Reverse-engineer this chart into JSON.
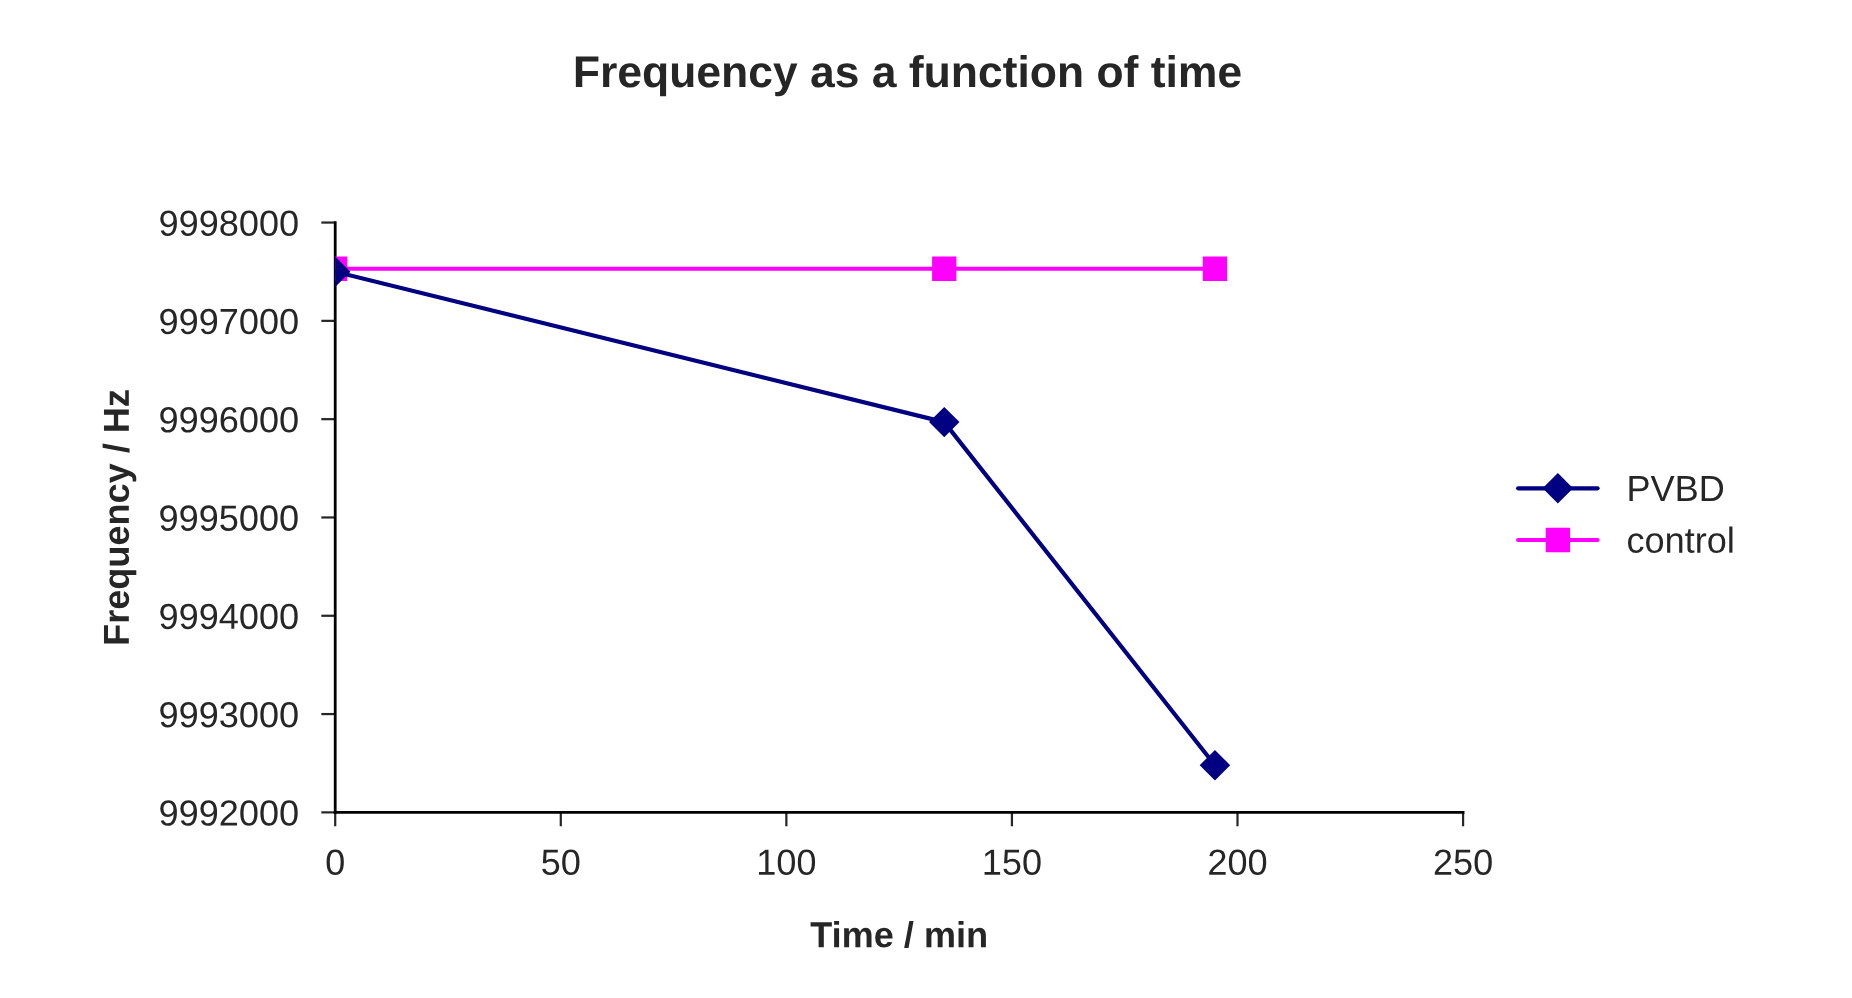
{
  "chart_data": {
    "type": "line",
    "title": "Frequency as a function of time",
    "xlabel": "Time / min",
    "ylabel": "Frequency / Hz",
    "x": [
      0,
      135,
      195
    ],
    "series": [
      {
        "name": "PVBD",
        "color": "#000080",
        "marker": "diamond",
        "values": [
          9997500,
          9995970,
          9992480
        ]
      },
      {
        "name": "control",
        "color": "#ff00ff",
        "marker": "square",
        "values": [
          9997530,
          9997530,
          9997530
        ]
      }
    ],
    "xlim": [
      0,
      250
    ],
    "xticks": [
      0,
      50,
      100,
      150,
      200,
      250
    ],
    "ylim": [
      9992000,
      9998000
    ],
    "yticks": [
      9992000,
      9993000,
      9994000,
      9995000,
      9996000,
      9997000,
      9998000
    ],
    "grid": false,
    "legend": "right",
    "line_style": "solid"
  }
}
